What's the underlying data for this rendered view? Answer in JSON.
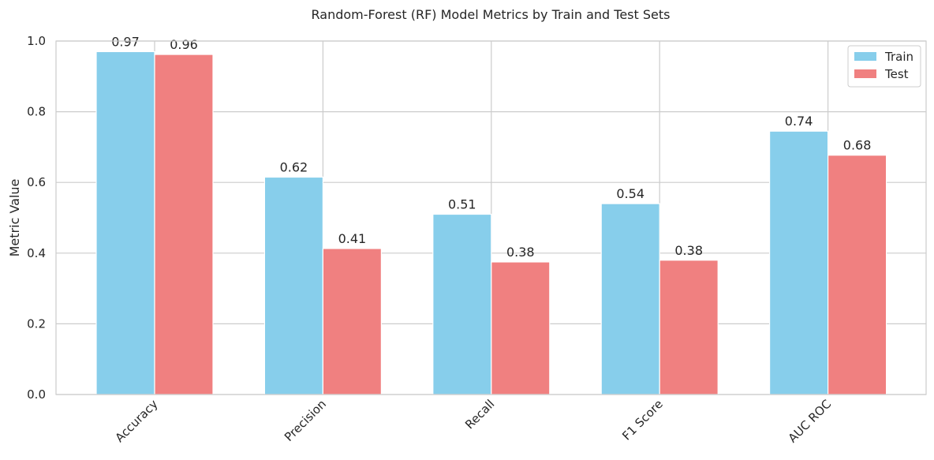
{
  "chart_data": {
    "type": "bar",
    "title": "Random-Forest (RF) Model Metrics by Train and Test Sets",
    "xlabel": "",
    "ylabel": "Metric Value",
    "categories": [
      "Accuracy",
      "Precision",
      "Recall",
      "F1 Score",
      "AUC ROC"
    ],
    "series": [
      {
        "name": "Train",
        "color": "#87CEEB",
        "values": [
          0.97,
          0.615,
          0.51,
          0.54,
          0.745
        ],
        "labels": [
          "0.97",
          "0.62",
          "0.51",
          "0.54",
          "0.74"
        ]
      },
      {
        "name": "Test",
        "color": "#F08080",
        "values": [
          0.962,
          0.413,
          0.375,
          0.38,
          0.677
        ],
        "labels": [
          "0.96",
          "0.41",
          "0.38",
          "0.38",
          "0.68"
        ]
      }
    ],
    "ylim": [
      0,
      1.0
    ],
    "yticks": [
      "0.0",
      "0.2",
      "0.4",
      "0.6",
      "0.8",
      "1.0"
    ],
    "ytick_values": [
      0,
      0.2,
      0.4,
      0.6,
      0.8,
      1.0
    ],
    "grid": true,
    "legend": "top-right"
  }
}
